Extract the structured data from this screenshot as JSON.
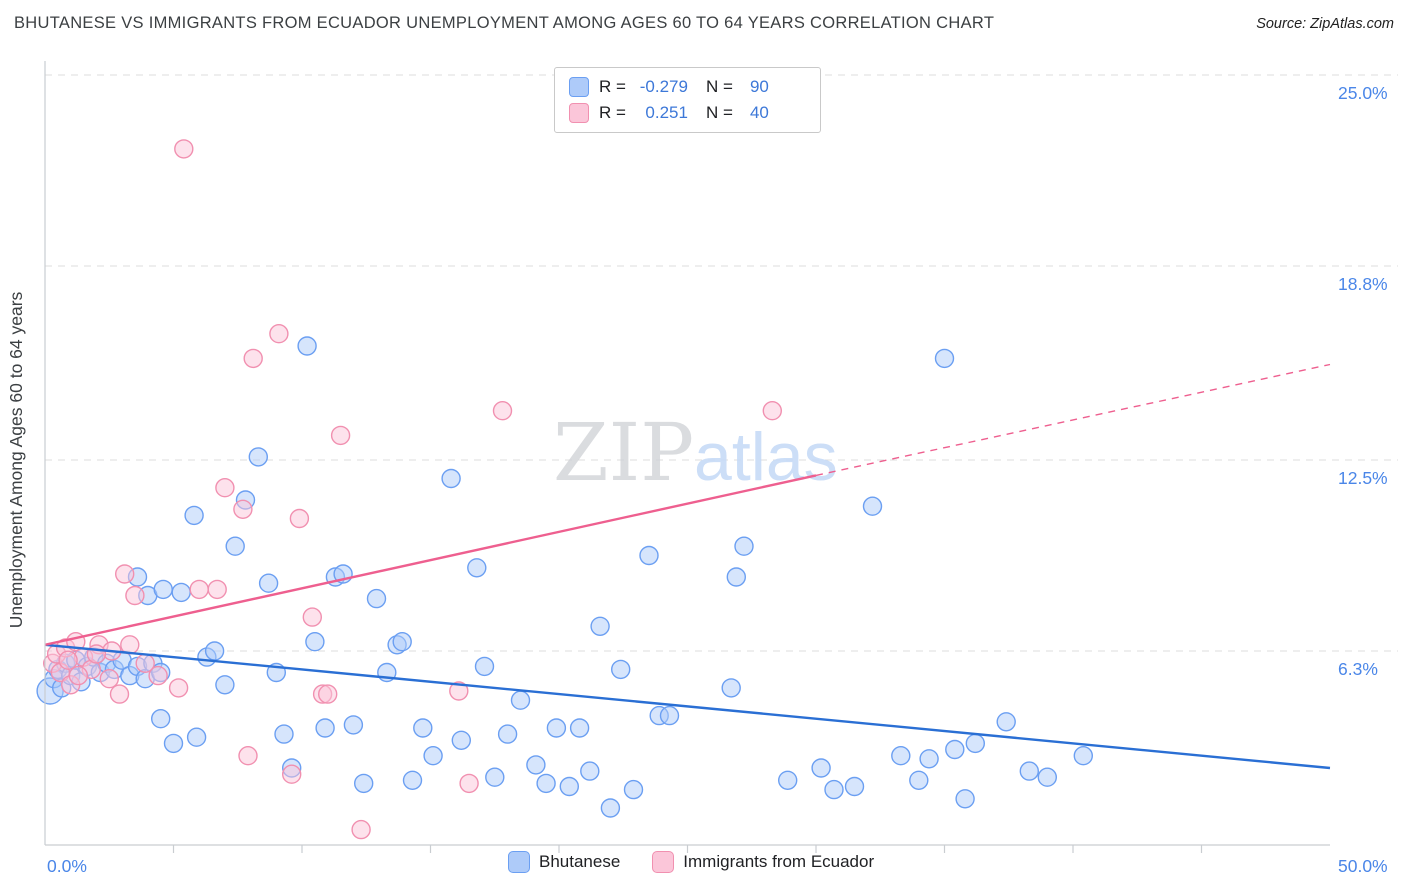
{
  "header": {
    "title": "BHUTANESE VS IMMIGRANTS FROM ECUADOR UNEMPLOYMENT AMONG AGES 60 TO 64 YEARS CORRELATION CHART",
    "source": "Source: ZipAtlas.com"
  },
  "watermark": {
    "part1": "ZIP",
    "part2": "atlas"
  },
  "correlation_legend": {
    "rows": [
      {
        "series": "Bhutanese",
        "r_label": "R =",
        "r_value": "-0.279",
        "n_label": "N =",
        "n_value": "90"
      },
      {
        "series": "Immigrants from Ecuador",
        "r_label": "R =",
        "r_value": "0.251",
        "n_label": "N =",
        "n_value": "40"
      }
    ]
  },
  "bottom_legend": {
    "items": [
      {
        "label": "Bhutanese",
        "color": "#aecbf9"
      },
      {
        "label": "Immigrants from Ecuador",
        "color": "#fbc6d9"
      }
    ]
  },
  "colors": {
    "axis_label_blue": "#4a86e8",
    "value_blue": "#3d78d8",
    "grid": "#dcdcdc",
    "axis": "#c9cdd1",
    "blue_fill": "#aecbf9",
    "blue_stroke": "#6b9ff2",
    "blue_trend": "#2a6fd4",
    "pink_fill": "#fbc6d9",
    "pink_stroke": "#f190b0",
    "pink_trend": "#ee5f8f"
  },
  "chart_data": {
    "type": "scatter",
    "title": "BHUTANESE VS IMMIGRANTS FROM ECUADOR UNEMPLOYMENT AMONG AGES 60 TO 64 YEARS CORRELATION CHART",
    "xlabel": "",
    "ylabel": "Unemployment Among Ages 60 to 64 years",
    "xlim": [
      0,
      50
    ],
    "ylim": [
      0,
      25
    ],
    "grid": "dashed-horizontal",
    "legend_position": "bottom-center",
    "x_ticks": [
      {
        "value": 0,
        "label": "0.0%"
      },
      {
        "value": 50,
        "label": "50.0%"
      }
    ],
    "y_ticks": [
      {
        "value": 25.0,
        "label": "25.0%"
      },
      {
        "value": 18.8,
        "label": "18.8%"
      },
      {
        "value": 12.5,
        "label": "12.5%"
      },
      {
        "value": 6.3,
        "label": "6.3%"
      }
    ],
    "x_minor_ticks": [
      5,
      10,
      15,
      20,
      25,
      30,
      35,
      40,
      45
    ],
    "series": [
      {
        "name": "Bhutanese",
        "R": -0.279,
        "N": 90,
        "fill": "#aecbf9",
        "stroke": "#6b9ff2",
        "points": [
          [
            0.2,
            5.0,
            13
          ],
          [
            0.35,
            5.4
          ],
          [
            0.5,
            5.7
          ],
          [
            0.65,
            5.1
          ],
          [
            0.8,
            5.9
          ],
          [
            1.0,
            5.5
          ],
          [
            1.2,
            6.0
          ],
          [
            1.4,
            5.3
          ],
          [
            1.65,
            5.8
          ],
          [
            1.9,
            6.1
          ],
          [
            2.15,
            5.6
          ],
          [
            2.4,
            5.9
          ],
          [
            2.7,
            5.7
          ],
          [
            3.0,
            6.0
          ],
          [
            3.3,
            5.5
          ],
          [
            3.6,
            5.8
          ],
          [
            3.9,
            5.4
          ],
          [
            4.2,
            5.9
          ],
          [
            4.5,
            5.6
          ],
          [
            3.6,
            8.7
          ],
          [
            4.0,
            8.1
          ],
          [
            4.6,
            8.3
          ],
          [
            4.5,
            4.1
          ],
          [
            5.0,
            3.3
          ],
          [
            5.3,
            8.2
          ],
          [
            5.8,
            10.7
          ],
          [
            6.3,
            6.1
          ],
          [
            6.6,
            6.3
          ],
          [
            5.9,
            3.5
          ],
          [
            7.0,
            5.2
          ],
          [
            7.4,
            9.7
          ],
          [
            7.8,
            11.2
          ],
          [
            8.3,
            12.6
          ],
          [
            8.7,
            8.5
          ],
          [
            9.0,
            5.6
          ],
          [
            9.3,
            3.6
          ],
          [
            9.6,
            2.5
          ],
          [
            10.2,
            16.2
          ],
          [
            10.5,
            6.6
          ],
          [
            10.9,
            3.8
          ],
          [
            11.3,
            8.7
          ],
          [
            11.6,
            8.8
          ],
          [
            12.0,
            3.9
          ],
          [
            12.4,
            2.0
          ],
          [
            12.9,
            8.0
          ],
          [
            13.3,
            5.6
          ],
          [
            13.7,
            6.5
          ],
          [
            13.9,
            6.6
          ],
          [
            14.3,
            2.1
          ],
          [
            14.7,
            3.8
          ],
          [
            15.1,
            2.9
          ],
          [
            15.8,
            11.9
          ],
          [
            16.2,
            3.4
          ],
          [
            16.8,
            9.0
          ],
          [
            17.1,
            5.8
          ],
          [
            17.5,
            2.2
          ],
          [
            18.0,
            3.6
          ],
          [
            18.5,
            4.7
          ],
          [
            19.1,
            2.6
          ],
          [
            19.5,
            2.0
          ],
          [
            19.9,
            3.8
          ],
          [
            20.4,
            1.9
          ],
          [
            20.8,
            3.8
          ],
          [
            21.2,
            2.4
          ],
          [
            21.6,
            7.1
          ],
          [
            22.0,
            1.2
          ],
          [
            22.4,
            5.7
          ],
          [
            22.9,
            1.8
          ],
          [
            23.5,
            9.4
          ],
          [
            23.9,
            4.2
          ],
          [
            24.3,
            4.2
          ],
          [
            26.7,
            5.1
          ],
          [
            26.9,
            8.7
          ],
          [
            27.2,
            9.7
          ],
          [
            28.9,
            2.1
          ],
          [
            30.2,
            2.5
          ],
          [
            30.7,
            1.8
          ],
          [
            31.5,
            1.9
          ],
          [
            32.2,
            11.0
          ],
          [
            33.3,
            2.9
          ],
          [
            34.0,
            2.1
          ],
          [
            34.4,
            2.8
          ],
          [
            35.0,
            15.8
          ],
          [
            35.4,
            3.1
          ],
          [
            35.8,
            1.5
          ],
          [
            36.2,
            3.3
          ],
          [
            37.4,
            4.0
          ],
          [
            38.3,
            2.4
          ],
          [
            39.0,
            2.2
          ],
          [
            40.4,
            2.9
          ]
        ]
      },
      {
        "name": "Immigrants from Ecuador",
        "R": 0.251,
        "N": 40,
        "fill": "#fbc6d9",
        "stroke": "#f190b0",
        "points": [
          [
            0.3,
            5.9
          ],
          [
            0.45,
            6.2
          ],
          [
            0.6,
            5.6
          ],
          [
            0.8,
            6.4
          ],
          [
            1.0,
            5.2
          ],
          [
            1.2,
            6.6
          ],
          [
            1.5,
            6.1
          ],
          [
            1.8,
            5.7
          ],
          [
            2.1,
            6.5
          ],
          [
            2.5,
            5.4
          ],
          [
            2.9,
            4.9
          ],
          [
            3.1,
            8.8
          ],
          [
            3.5,
            8.1
          ],
          [
            3.9,
            5.9
          ],
          [
            4.4,
            5.5
          ],
          [
            2.6,
            6.3
          ],
          [
            5.2,
            5.1
          ],
          [
            5.4,
            22.6
          ],
          [
            6.0,
            8.3
          ],
          [
            6.7,
            8.3
          ],
          [
            7.0,
            11.6
          ],
          [
            7.7,
            10.9
          ],
          [
            7.9,
            2.9
          ],
          [
            8.1,
            15.8
          ],
          [
            9.1,
            16.6
          ],
          [
            9.6,
            2.3
          ],
          [
            9.9,
            10.6
          ],
          [
            10.4,
            7.4
          ],
          [
            10.8,
            4.9
          ],
          [
            11.5,
            13.3
          ],
          [
            11.0,
            4.9
          ],
          [
            12.3,
            0.5
          ],
          [
            16.1,
            5.0
          ],
          [
            16.5,
            2.0
          ],
          [
            17.8,
            14.1
          ],
          [
            28.3,
            14.1
          ],
          [
            1.3,
            5.5
          ],
          [
            0.9,
            6.0
          ],
          [
            2.0,
            6.2
          ],
          [
            3.3,
            6.5
          ]
        ]
      }
    ],
    "trend_lines": [
      {
        "name": "bhutanese",
        "color": "#2a6fd4",
        "style": "solid",
        "x1": 0,
        "y1": 6.5,
        "x2": 50,
        "y2": 2.5
      },
      {
        "name": "ecuador",
        "color": "#ee5f8f",
        "style": "solid",
        "x1": 0,
        "y1": 6.5,
        "x2": 30,
        "y2": 12.0
      },
      {
        "name": "ecuador-extrapolated",
        "color": "#ee5f8f",
        "style": "dashed",
        "x1": 30,
        "y1": 12.0,
        "x2": 50,
        "y2": 15.6
      }
    ]
  }
}
